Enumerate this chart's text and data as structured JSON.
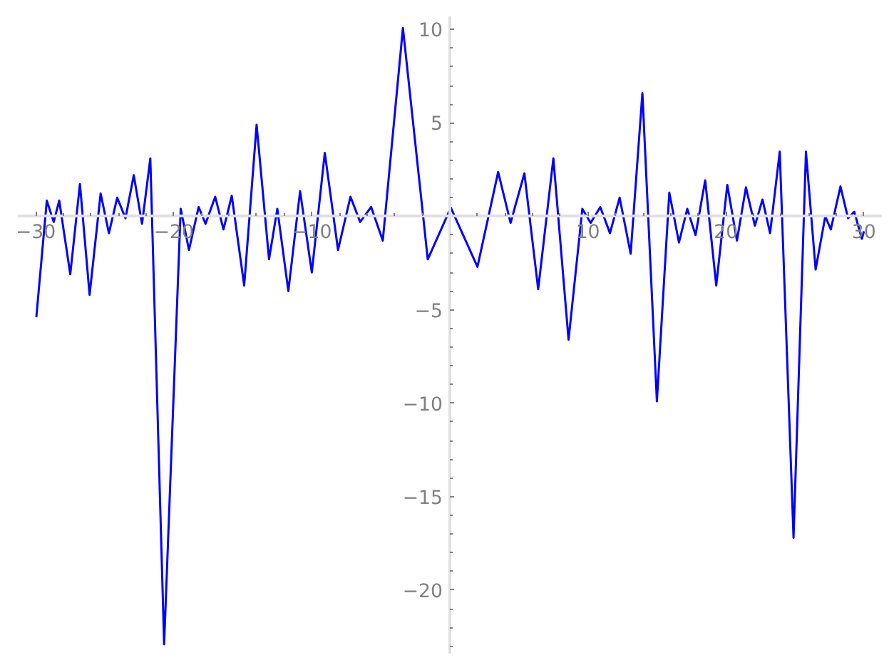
{
  "chart_data": {
    "type": "line",
    "xlim": [
      -31.3,
      31.3
    ],
    "ylim": [
      -23.4,
      10.7
    ],
    "xticks": [
      {
        "value": -30,
        "label": "−30"
      },
      {
        "value": -20,
        "label": "−20"
      },
      {
        "value": -10,
        "label": "−10"
      },
      10,
      20,
      30
    ],
    "yticks": [
      {
        "value": -20,
        "label": "−20"
      },
      {
        "value": -15,
        "label": "−15"
      },
      {
        "value": -10,
        "label": "−10"
      },
      {
        "value": -5,
        "label": "−5"
      },
      5,
      10
    ],
    "grid": false,
    "marker": "none",
    "line_style": "solid",
    "series": [
      {
        "color": "#0000ff",
        "x": [
          -29.96,
          -29.2,
          -28.7,
          -28.3,
          -27.5,
          -26.8,
          -26.1,
          -25.3,
          -24.7,
          -24.1,
          -23.5,
          -22.9,
          -22.3,
          -21.7,
          -20.7,
          -19.5,
          -18.9,
          -18.2,
          -17.7,
          -17.0,
          -16.4,
          -15.8,
          -14.9,
          -14.0,
          -13.1,
          -12.5,
          -11.7,
          -10.85,
          -10.0,
          -9.06,
          -8.1,
          -7.2,
          -6.5,
          -5.7,
          -4.86,
          -3.4,
          -1.6,
          0.07,
          2.0,
          3.5,
          4.4,
          5.4,
          6.4,
          7.5,
          8.6,
          9.6,
          10.2,
          10.9,
          11.6,
          12.3,
          13.1,
          13.95,
          15.0,
          15.9,
          16.6,
          17.2,
          17.8,
          18.5,
          19.3,
          20.1,
          20.8,
          21.45,
          22.1,
          22.65,
          23.2,
          23.9,
          24.9,
          25.8,
          26.5,
          27.2,
          27.6,
          28.3,
          28.85,
          29.3,
          29.85,
          30.0
        ],
        "values": [
          -5.4,
          0.84,
          -0.3,
          0.84,
          -3.1,
          1.73,
          -4.2,
          1.22,
          -0.9,
          1.0,
          -0.1,
          2.2,
          -0.4,
          3.1,
          -22.9,
          0.4,
          -1.8,
          0.5,
          -0.4,
          1.05,
          -0.7,
          1.1,
          -3.7,
          4.9,
          -2.3,
          0.4,
          -4.0,
          1.35,
          -3.0,
          3.4,
          -1.8,
          1.05,
          -0.3,
          0.5,
          -1.3,
          10.08,
          -2.3,
          0.46,
          -2.7,
          2.37,
          -0.35,
          2.3,
          -3.9,
          3.1,
          -6.6,
          0.4,
          -0.35,
          0.5,
          -0.9,
          1.0,
          -2.0,
          6.6,
          -9.9,
          1.27,
          -1.4,
          0.4,
          -1.0,
          1.93,
          -3.7,
          1.68,
          -1.3,
          1.55,
          -0.5,
          0.9,
          -0.9,
          3.46,
          -17.2,
          3.46,
          -2.85,
          0.0,
          -0.7,
          1.6,
          -0.1,
          0.25,
          -1.2,
          -0.8
        ]
      }
    ]
  }
}
